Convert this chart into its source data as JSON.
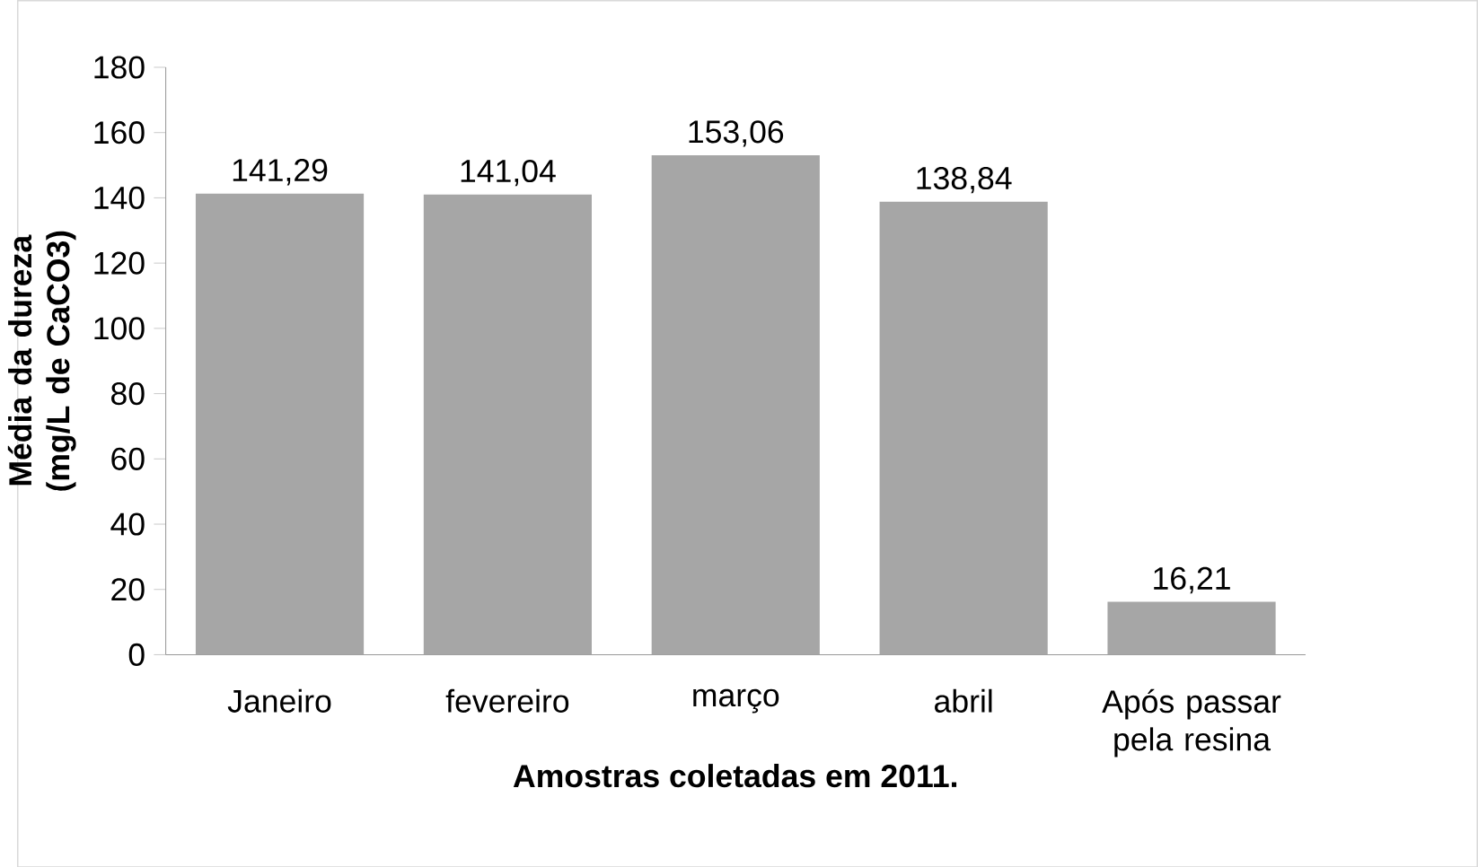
{
  "chart_data": {
    "type": "bar",
    "xlabel": "Amostras coletadas em 2011.",
    "ylabel": "Média da dureza (mg/L de CaCO3)",
    "categories": [
      "Janeiro",
      "fevereiro",
      "março",
      "abril",
      "Após passar pela resina"
    ],
    "values": [
      141.29,
      141.04,
      153.06,
      138.84,
      16.21
    ],
    "value_labels": [
      "141,29",
      "141,04",
      "153,06",
      "138,84",
      "16,21"
    ],
    "color": "#a6a6a6",
    "ylim": [
      0,
      180
    ],
    "yticks": [
      0,
      20,
      40,
      60,
      80,
      100,
      120,
      140,
      160,
      180
    ],
    "grid": false
  }
}
